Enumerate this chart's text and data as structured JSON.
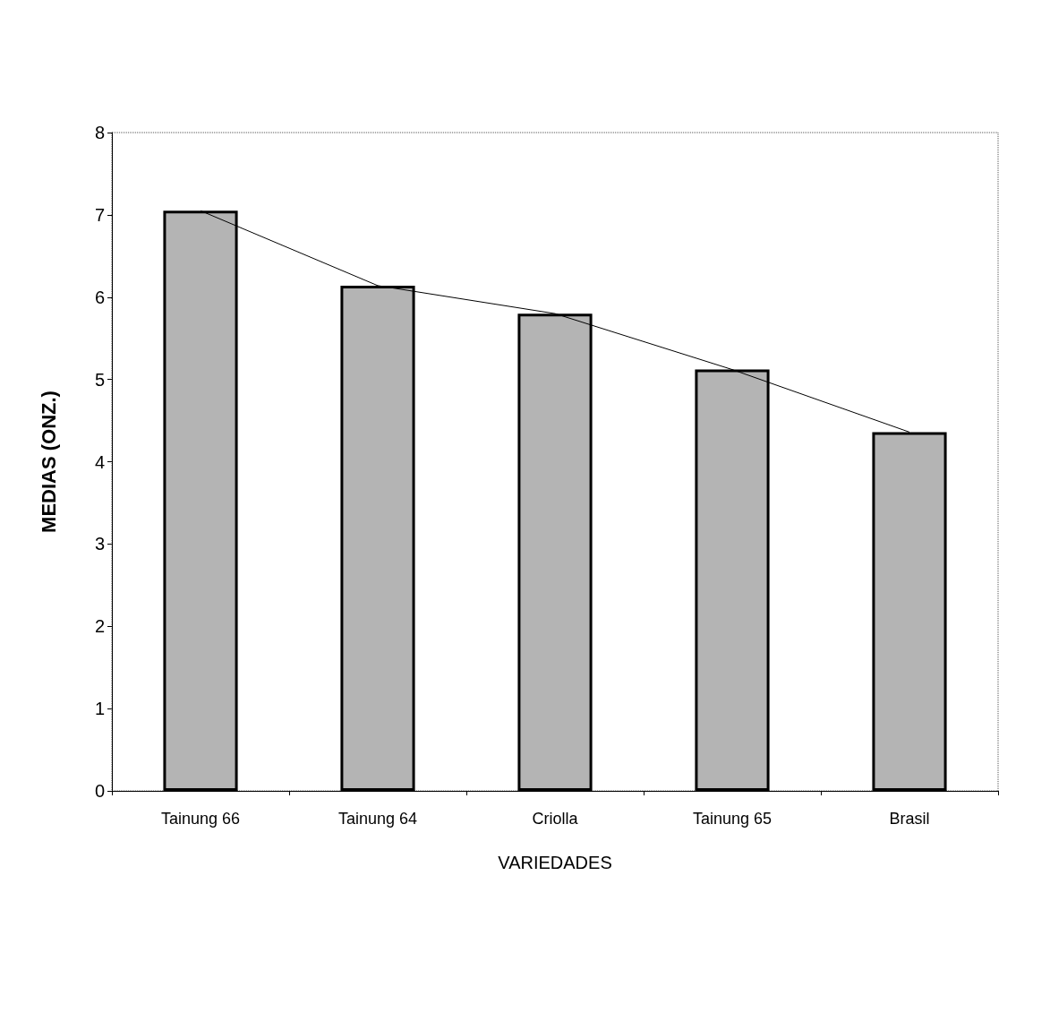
{
  "chart_data": {
    "type": "bar",
    "xlabel": "VARIEDADES",
    "ylabel": "MEDIAS (ONZ.)",
    "categories": [
      "Tainung 66",
      "Tainung 64",
      "Criolla",
      "Tainung 65",
      "Brasil"
    ],
    "series": [
      {
        "color": "#b4b4b4",
        "values": [
          7.05,
          6.14,
          5.8,
          5.12,
          4.36
        ]
      },
      {
        "type": "line",
        "color": "#000000",
        "marker": "none",
        "values": [
          7.05,
          6.14,
          5.8,
          5.12,
          4.36
        ]
      }
    ],
    "ylim": [
      0,
      8
    ],
    "yticks": [
      0,
      1,
      2,
      3,
      4,
      5,
      6,
      7,
      8
    ],
    "grid": false
  }
}
